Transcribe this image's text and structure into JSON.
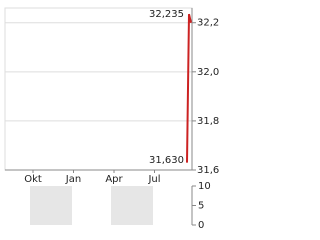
{
  "chart_data": [
    {
      "type": "line",
      "xticks": [
        "Okt",
        "Jan",
        "Apr",
        "Jul"
      ],
      "series": [
        {
          "color": "#cc2222",
          "values": [
            31.63,
            32.235,
            32.2
          ]
        }
      ],
      "annotations": [
        "32,235",
        "31,630"
      ],
      "ylim": [
        31.6,
        32.26
      ],
      "yticks": [
        {
          "value": 31.6,
          "label": "31,6"
        },
        {
          "value": 31.8,
          "label": "31,8"
        },
        {
          "value": 32.0,
          "label": "32,0"
        },
        {
          "value": 32.2,
          "label": "32,2"
        }
      ],
      "grid": true
    },
    {
      "type": "volume",
      "shaded": [
        "Okt",
        "Apr"
      ],
      "ylim": [
        0,
        10
      ],
      "yticks": [
        0,
        5,
        10
      ]
    }
  ]
}
